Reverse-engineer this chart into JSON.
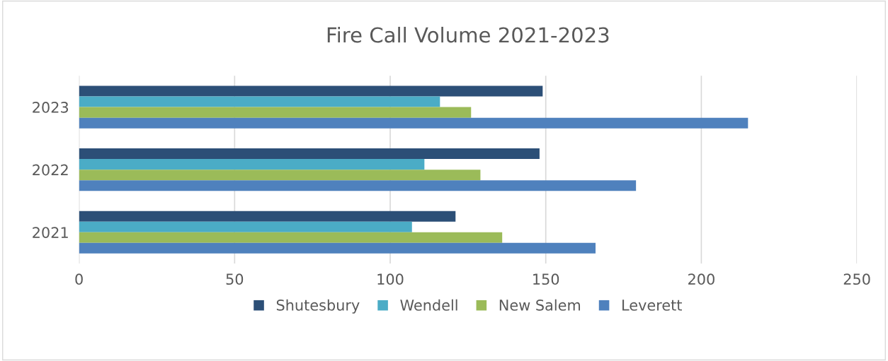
{
  "chart_data": {
    "type": "bar",
    "orientation": "horizontal",
    "title": "Fire Call Volume 2021-2023",
    "categories": [
      "2023",
      "2022",
      "2021"
    ],
    "series": [
      {
        "name": "Shutesbury",
        "color": "#2c4f77",
        "values": [
          149,
          148,
          121
        ]
      },
      {
        "name": "Wendell",
        "color": "#4bacc6",
        "values": [
          116,
          111,
          107
        ]
      },
      {
        "name": "New Salem",
        "color": "#9bbb59",
        "values": [
          126,
          129,
          136
        ]
      },
      {
        "name": "Leverett",
        "color": "#4f81bd",
        "values": [
          215,
          179,
          166
        ]
      }
    ],
    "xlim": [
      0,
      250
    ],
    "xticks": [
      0,
      50,
      100,
      150,
      200,
      250
    ],
    "grid": "x",
    "legend": "bottom"
  }
}
